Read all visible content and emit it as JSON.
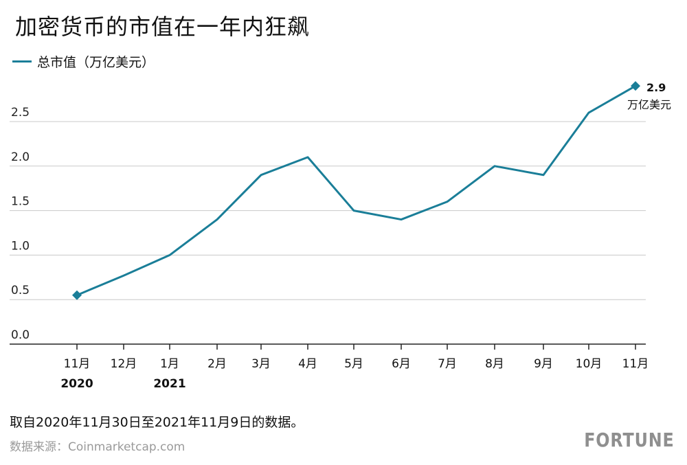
{
  "chart_data": {
    "type": "line",
    "title": "加密货币的市值在一年内狂飙",
    "categories": [
      "11月",
      "12月",
      "1月",
      "2月",
      "3月",
      "4月",
      "5月",
      "6月",
      "7月",
      "8月",
      "9月",
      "10月",
      "11月"
    ],
    "year_labels": [
      "2020",
      "",
      "2021",
      "",
      "",
      "",
      "",
      "",
      "",
      "",
      "",
      "",
      ""
    ],
    "series": [
      {
        "name": "总市值（万亿美元）",
        "color": "#1a7e98",
        "values": [
          0.55,
          0.77,
          1.0,
          1.4,
          1.9,
          2.1,
          1.5,
          1.4,
          1.6,
          2.0,
          1.9,
          2.6,
          2.9
        ]
      }
    ],
    "yticks": [
      "0.0",
      "0.5",
      "1.0",
      "1.5",
      "2.0",
      "2.5"
    ],
    "ylim": [
      0,
      2.5
    ],
    "grid": true,
    "end_annotation": {
      "value": "2.9",
      "unit": "万亿美元"
    }
  },
  "footer": {
    "note": "取自2020年11月30日至2021年11月9日的数据。",
    "source": "数据来源：Coinmarketcap.com",
    "brand": "FORTUNE"
  }
}
